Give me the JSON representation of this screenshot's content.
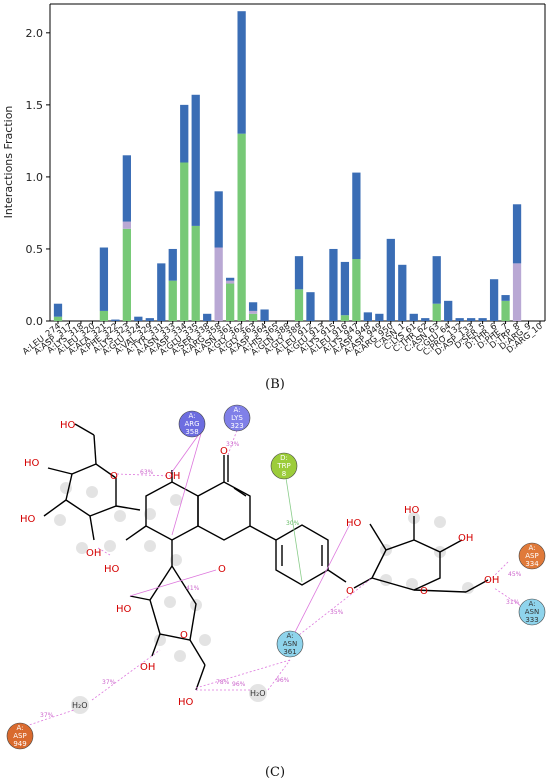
{
  "chart_data": {
    "type": "bar",
    "stacked": true,
    "panel_label": "(B)",
    "ylabel": "Interactions Fraction",
    "ylim": [
      0,
      2.2
    ],
    "yticks": [
      "0.0",
      "0.5",
      "1.0",
      "1.5",
      "2.0"
    ],
    "ytick_values": [
      0,
      0.5,
      1.0,
      1.5,
      2.0
    ],
    "grid": false,
    "categories": [
      "A:LEU_274",
      "A:ASP_317",
      "A:LYS_318",
      "A:LEU_320",
      "A:ALA_321",
      "A:PHE_322",
      "A:LYS_323",
      "A:GLU_324",
      "A:VAL_329",
      "A:TYR_331",
      "A:ASN_333",
      "A:ASP_334",
      "A:GLU_335",
      "A:SER_338",
      "A:ARG_358",
      "A:ASN_361",
      "A:GLY_362",
      "A:GLY_363",
      "A:ASP_364",
      "A:HIS_365",
      "A:GLN_388",
      "A:GLY_389",
      "A:LEU_912",
      "A:GLU_913",
      "A:LYS_915",
      "A:LEU_916",
      "A:LYS_947",
      "A:ASP_948",
      "A:ASP_949",
      "A:ARG_950",
      "C:ASN_1",
      "C:LYS_61",
      "C:THR_62",
      "C:ASN_63",
      "C:GLU_64",
      "C:PRO_132",
      "D:ASP_133",
      "D:SER_5",
      "D:THR_6",
      "D:PHE_7",
      "D:TRP_8",
      "D:ARG_9",
      "D:ARG_10"
    ],
    "series": [
      {
        "name": "",
        "color": "#77c977",
        "values": [
          0.03,
          0,
          0,
          0,
          0.07,
          0,
          0.64,
          0,
          0,
          0,
          0.28,
          1.1,
          0.66,
          0,
          0,
          0.26,
          1.3,
          0.05,
          0,
          0,
          0,
          0.22,
          0,
          0,
          0,
          0.04,
          0.43,
          0,
          0,
          0,
          0,
          0,
          0,
          0.12,
          0,
          0,
          0,
          0,
          0,
          0.14,
          0,
          0,
          0
        ]
      },
      {
        "name": "",
        "color": "#b9a8d4",
        "values": [
          0,
          0,
          0,
          0,
          0,
          0,
          0.05,
          0,
          0,
          0,
          0,
          0,
          0,
          0,
          0.51,
          0.02,
          0,
          0.02,
          0,
          0,
          0,
          0,
          0,
          0,
          0,
          0,
          0,
          0,
          0,
          0,
          0,
          0,
          0,
          0,
          0,
          0,
          0,
          0,
          0,
          0,
          0.4,
          0,
          0
        ]
      },
      {
        "name": "",
        "color": "#3a6db5",
        "values": [
          0.09,
          0,
          0,
          0,
          0.44,
          0.01,
          0.46,
          0.03,
          0.02,
          0.4,
          0.22,
          0.4,
          0.91,
          0.05,
          0.39,
          0.02,
          0.85,
          0.06,
          0.08,
          0,
          0,
          0.23,
          0.2,
          0,
          0.5,
          0.37,
          0.6,
          0.06,
          0.05,
          0.57,
          0.39,
          0.05,
          0.02,
          0.33,
          0.14,
          0.02,
          0.02,
          0.02,
          0.29,
          0.04,
          0.41,
          0,
          0
        ]
      }
    ]
  },
  "diagram": {
    "panel_label": "(C)",
    "residues": [
      {
        "chain": "A:",
        "name": "ARG",
        "num": "358",
        "color": "#6d6de0"
      },
      {
        "chain": "A:",
        "name": "LYS",
        "num": "323",
        "color": "#8080e8"
      },
      {
        "chain": "D:",
        "name": "TRP",
        "num": "8",
        "color": "#9ccc3a"
      },
      {
        "chain": "A:",
        "name": "ASP",
        "num": "334",
        "color": "#e07a3a"
      },
      {
        "chain": "A:",
        "name": "ASN",
        "num": "333",
        "color": "#8fd4ec"
      },
      {
        "chain": "A:",
        "name": "ASN",
        "num": "361",
        "color": "#8fd4ec"
      },
      {
        "chain": "A:",
        "name": "ASP",
        "num": "949",
        "color": "#d96a2e"
      }
    ],
    "atoms": {
      "ho": "HO",
      "oh": "OH",
      "o": "O",
      "h2o": "H₂O"
    },
    "percent_labels": [
      "63%",
      "33%",
      "30%",
      "45%",
      "31%",
      "41%",
      "37%",
      "37%",
      "78%",
      "96%",
      "96%",
      "35%"
    ]
  }
}
